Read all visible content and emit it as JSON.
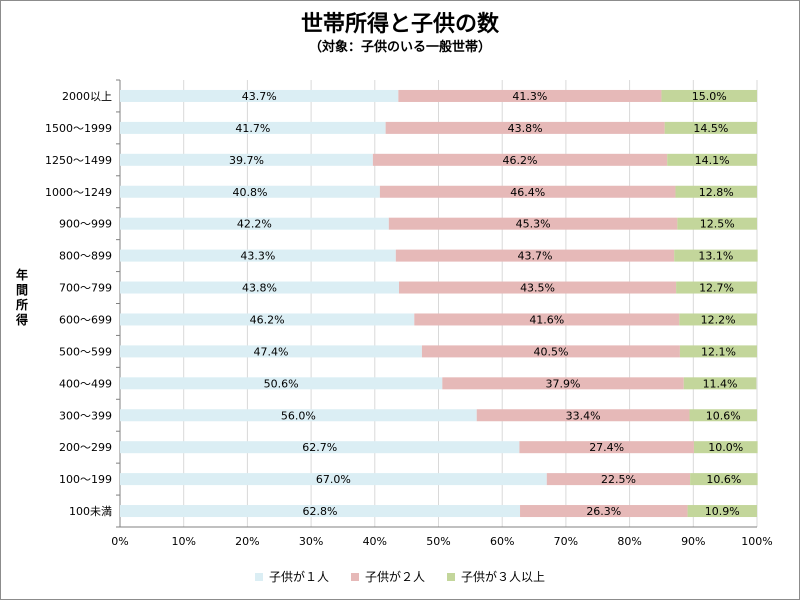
{
  "chart_data": {
    "type": "bar",
    "orientation": "horizontal",
    "stacked": true,
    "title": "世帯所得と子供の数",
    "subtitle": "（対象：子供のいる一般世帯）",
    "ylabel": "年間所得",
    "xlim": [
      0,
      100
    ],
    "x_ticks": [
      "0%",
      "10%",
      "20%",
      "30%",
      "40%",
      "50%",
      "60%",
      "70%",
      "80%",
      "90%",
      "100%"
    ],
    "grid": "vertical",
    "legend_position": "bottom",
    "categories": [
      "2000以上",
      "1500～1999",
      "1250～1499",
      "1000～1249",
      "900～999",
      "800～899",
      "700～799",
      "600～699",
      "500～599",
      "400～499",
      "300～399",
      "200～299",
      "100～199",
      "100未満"
    ],
    "series": [
      {
        "name": "子供が１人",
        "color": "#dbeef4",
        "values": [
          43.7,
          41.7,
          39.7,
          40.8,
          42.2,
          43.3,
          43.8,
          46.2,
          47.4,
          50.6,
          56.0,
          62.7,
          67.0,
          62.8
        ]
      },
      {
        "name": "子供が２人",
        "color": "#e6b9b8",
        "values": [
          41.3,
          43.8,
          46.2,
          46.4,
          45.3,
          43.7,
          43.5,
          41.6,
          40.5,
          37.9,
          33.4,
          27.4,
          22.5,
          26.3
        ]
      },
      {
        "name": "子供が３人以上",
        "color": "#c3d69b",
        "values": [
          15.0,
          14.5,
          14.1,
          12.8,
          12.5,
          13.1,
          12.7,
          12.2,
          12.1,
          11.4,
          10.6,
          10.0,
          10.6,
          10.9
        ]
      }
    ]
  }
}
